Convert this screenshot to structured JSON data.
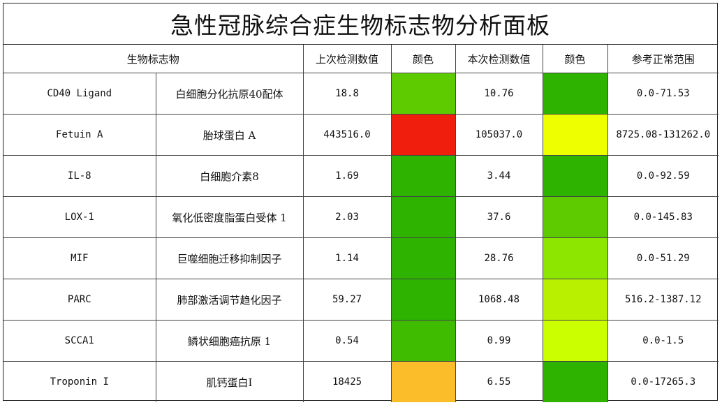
{
  "title": "急性冠脉综合症生物标志物分析面板",
  "headers": {
    "biomarker": "生物标志物",
    "last_value": "上次检测数值",
    "last_color": "颜色",
    "current_value": "本次检测数值",
    "current_color": "颜色",
    "reference": "参考正常范围"
  },
  "rows": [
    {
      "code": "CD40 Ligand",
      "name": "白细胞分化抗原40配体",
      "last": "18.8",
      "last_color": "#5ecb00",
      "current": "10.76",
      "current_color": "#2db300",
      "range": "0.0-71.53"
    },
    {
      "code": "Fetuin A",
      "name": "胎球蛋白 A",
      "last": "443516.0",
      "last_color": "#f01e0c",
      "current": "105037.0",
      "current_color": "#eeff00",
      "range": "8725.08-131262.0"
    },
    {
      "code": "IL-8",
      "name": "白细胞介素8",
      "last": "1.69",
      "last_color": "#2db300",
      "current": "3.44",
      "current_color": "#2db300",
      "range": "0.0-92.59"
    },
    {
      "code": "LOX-1",
      "name": "氧化低密度脂蛋白受体 1",
      "last": "2.03",
      "last_color": "#2db300",
      "current": "37.6",
      "current_color": "#5ecb00",
      "range": "0.0-145.83"
    },
    {
      "code": "MIF",
      "name": "巨噬细胞迁移抑制因子",
      "last": "1.14",
      "last_color": "#2db300",
      "current": "28.76",
      "current_color": "#8de600",
      "range": "0.0-51.29"
    },
    {
      "code": "PARC",
      "name": "肺部激活调节趋化因子",
      "last": "59.27",
      "last_color": "#2db300",
      "current": "1068.48",
      "current_color": "#b8f000",
      "range": "516.2-1387.12"
    },
    {
      "code": "SCCA1",
      "name": "鳞状细胞癌抗原 1",
      "last": "0.54",
      "last_color": "#3fbb00",
      "current": "0.99",
      "current_color": "#cbff00",
      "range": "0.0-1.5"
    },
    {
      "code": "Troponin I",
      "name": "肌钙蛋白I",
      "last": "18425",
      "last_color": "#fbbd2a",
      "current": "6.55",
      "current_color": "#2db300",
      "range": "0.0-17265.3"
    }
  ]
}
